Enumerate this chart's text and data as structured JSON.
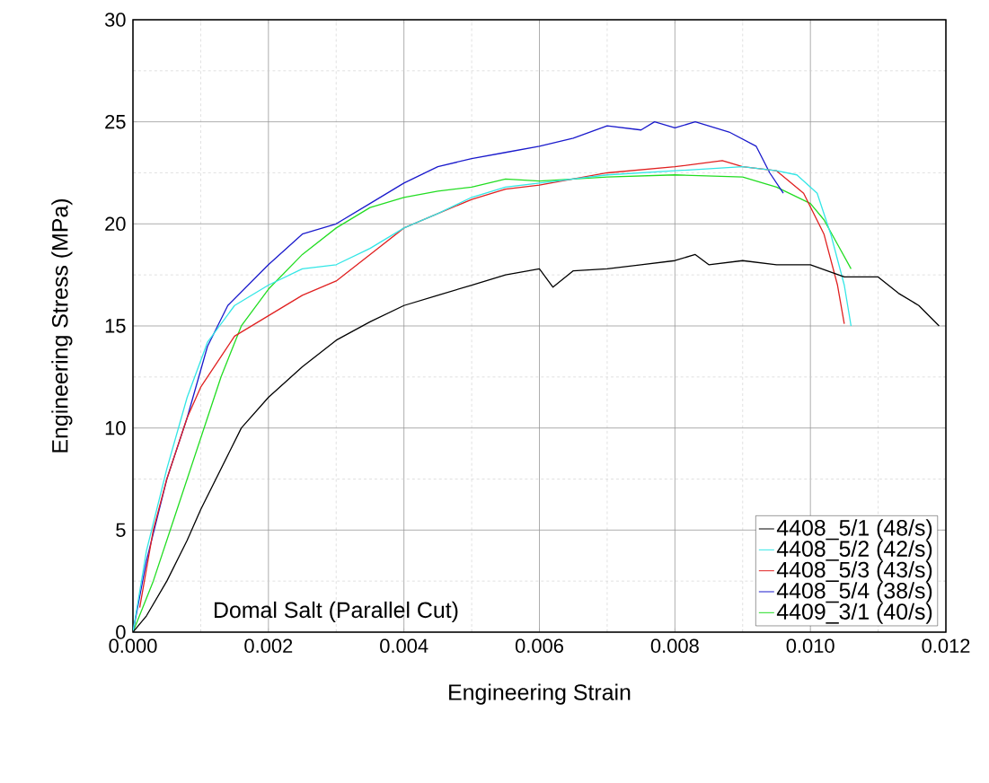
{
  "chart_data": {
    "type": "line",
    "xlabel": "Engineering Strain",
    "ylabel": "Engineering Stress (MPa)",
    "xlim": [
      0,
      0.012
    ],
    "ylim": [
      0,
      30
    ],
    "xticks": [
      {
        "value": 0,
        "label": "0.000"
      },
      {
        "value": 0.002,
        "label": "0.002"
      },
      {
        "value": 0.004,
        "label": "0.004"
      },
      {
        "value": 0.006,
        "label": "0.006"
      },
      {
        "value": 0.008,
        "label": "0.008"
      },
      {
        "value": 0.01,
        "label": "0.010"
      },
      {
        "value": 0.012,
        "label": "0.012"
      }
    ],
    "yticks": [
      0,
      5,
      10,
      15,
      20,
      25,
      30
    ],
    "grid": true,
    "legend": "bottom right",
    "line_style": "solid",
    "marker": "none",
    "annotations": [
      "Domal Salt (Parallel Cut)"
    ],
    "series": [
      {
        "name": "4408_5/1 (48/s)",
        "color": "#000000",
        "x": [
          0,
          0.0002,
          0.0005,
          0.0008,
          0.001,
          0.0013,
          0.0016,
          0.002,
          0.0025,
          0.003,
          0.0035,
          0.004,
          0.0045,
          0.005,
          0.0055,
          0.006,
          0.0062,
          0.0065,
          0.007,
          0.0075,
          0.008,
          0.0083,
          0.0085,
          0.009,
          0.0095,
          0.01,
          0.0105,
          0.011,
          0.0113,
          0.0116,
          0.0119
        ],
        "values": [
          0,
          0.8,
          2.5,
          4.5,
          6,
          8,
          10,
          11.5,
          13,
          14.3,
          15.2,
          16,
          16.5,
          17,
          17.5,
          17.8,
          16.9,
          17.7,
          17.8,
          18,
          18.2,
          18.5,
          18,
          18.2,
          18,
          18,
          17.4,
          17.4,
          16.6,
          16,
          15
        ]
      },
      {
        "name": "4408_5/2 (42/s)",
        "color": "#33e6e6",
        "x": [
          0,
          0.0002,
          0.0005,
          0.0008,
          0.0011,
          0.0015,
          0.002,
          0.0025,
          0.003,
          0.0035,
          0.004,
          0.0045,
          0.005,
          0.0055,
          0.006,
          0.007,
          0.008,
          0.009,
          0.0095,
          0.0098,
          0.0101,
          0.0103,
          0.0105,
          0.0106
        ],
        "values": [
          0,
          4,
          8,
          11.5,
          14.2,
          16,
          17,
          17.8,
          18,
          18.8,
          19.8,
          20.5,
          21.3,
          21.8,
          22,
          22.4,
          22.6,
          22.8,
          22.6,
          22.4,
          21.5,
          19.5,
          17,
          15
        ]
      },
      {
        "name": "4408_5/3 (43/s)",
        "color": "#e02020",
        "x": [
          0.0001,
          0.0003,
          0.0005,
          0.0008,
          0.001,
          0.0013,
          0.0015,
          0.002,
          0.0025,
          0.003,
          0.0035,
          0.004,
          0.0045,
          0.005,
          0.0055,
          0.006,
          0.007,
          0.008,
          0.0087,
          0.009,
          0.0095,
          0.0099,
          0.0102,
          0.0104,
          0.0105
        ],
        "values": [
          1.2,
          5,
          7.5,
          10.5,
          12,
          13.5,
          14.5,
          15.5,
          16.5,
          17.2,
          18.5,
          19.8,
          20.5,
          21.2,
          21.7,
          21.9,
          22.5,
          22.8,
          23.1,
          22.8,
          22.6,
          21.5,
          19.5,
          17,
          15.1
        ]
      },
      {
        "name": "4408_5/4 (38/s)",
        "color": "#1a1acc",
        "x": [
          0,
          0.0002,
          0.0005,
          0.0008,
          0.0011,
          0.0014,
          0.002,
          0.0025,
          0.003,
          0.0035,
          0.004,
          0.0045,
          0.005,
          0.0055,
          0.006,
          0.0065,
          0.007,
          0.0075,
          0.0077,
          0.008,
          0.0083,
          0.0088,
          0.0092,
          0.0094,
          0.0096
        ],
        "values": [
          0,
          3.5,
          7.5,
          10.5,
          14,
          16,
          18,
          19.5,
          20,
          21,
          22,
          22.8,
          23.2,
          23.5,
          23.8,
          24.2,
          24.8,
          24.6,
          25,
          24.7,
          25,
          24.5,
          23.8,
          22.5,
          21.5
        ]
      },
      {
        "name": "4409_3/1 (40/s)",
        "color": "#22dd22",
        "x": [
          0,
          0.0003,
          0.0006,
          0.001,
          0.0013,
          0.0016,
          0.002,
          0.0025,
          0.003,
          0.0035,
          0.004,
          0.0045,
          0.005,
          0.0055,
          0.006,
          0.007,
          0.008,
          0.009,
          0.0095,
          0.01,
          0.0102,
          0.0104,
          0.0106
        ],
        "values": [
          0,
          2.5,
          5.5,
          9.5,
          12.5,
          15,
          16.8,
          18.5,
          19.8,
          20.8,
          21.3,
          21.6,
          21.8,
          22.2,
          22.1,
          22.3,
          22.4,
          22.3,
          21.8,
          21,
          20.2,
          19,
          17.8
        ]
      }
    ]
  }
}
